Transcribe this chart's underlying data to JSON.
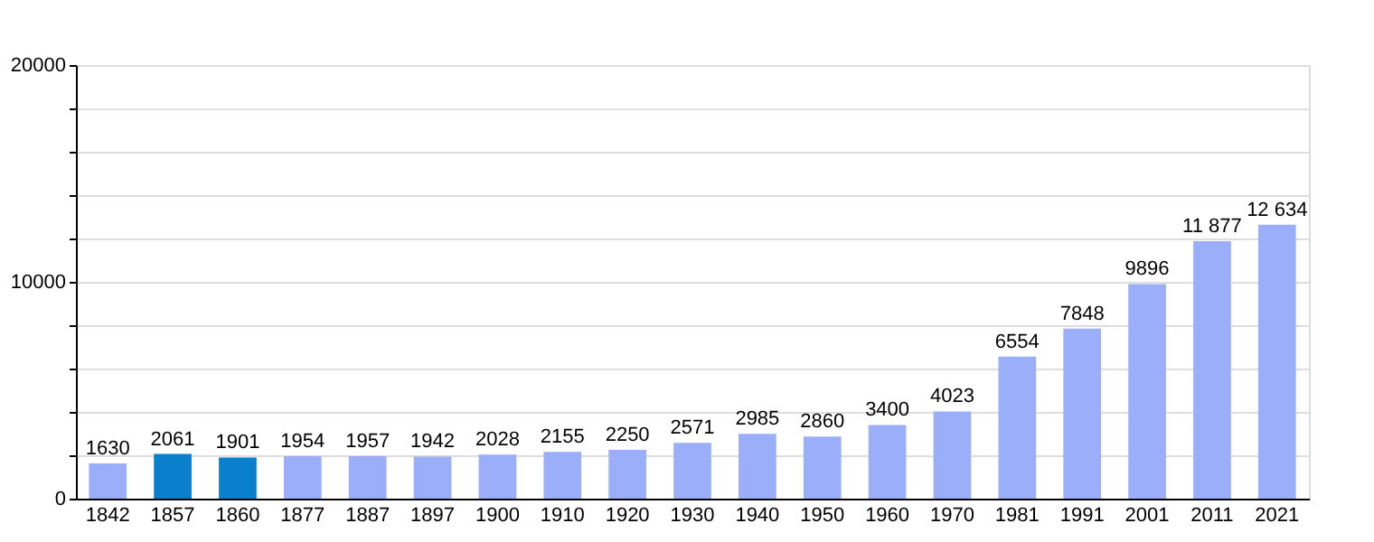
{
  "chart_data": {
    "type": "bar",
    "categories": [
      "1842",
      "1857",
      "1860",
      "1877",
      "1887",
      "1897",
      "1900",
      "1910",
      "1920",
      "1930",
      "1940",
      "1950",
      "1960",
      "1970",
      "1981",
      "1991",
      "2001",
      "2011",
      "2021"
    ],
    "values": [
      1630,
      2061,
      1901,
      1954,
      1957,
      1942,
      2028,
      2155,
      2250,
      2571,
      2985,
      2860,
      3400,
      4023,
      6554,
      7848,
      9896,
      11877,
      12634
    ],
    "value_labels": [
      "1630",
      "2061",
      "1901",
      "1954",
      "1957",
      "1942",
      "2028",
      "2155",
      "2250",
      "2571",
      "2985",
      "2860",
      "3400",
      "4023",
      "6554",
      "7848",
      "9896",
      "11 877",
      "12 634"
    ],
    "colors": [
      "#9aaefa",
      "#0a7fcc",
      "#0a7fcc",
      "#9aaefa",
      "#9aaefa",
      "#9aaefa",
      "#9aaefa",
      "#9aaefa",
      "#9aaefa",
      "#9aaefa",
      "#9aaefa",
      "#9aaefa",
      "#9aaefa",
      "#9aaefa",
      "#9aaefa",
      "#9aaefa",
      "#9aaefa",
      "#9aaefa",
      "#9aaefa"
    ],
    "ylim": [
      0,
      20000
    ],
    "yticks": [
      0,
      {
        "value": 2000,
        "label": null
      },
      {
        "value": 4000,
        "label": null
      },
      {
        "value": 6000,
        "label": null
      },
      {
        "value": 8000,
        "label": null
      },
      10000,
      {
        "value": 12000,
        "label": null
      },
      {
        "value": 14000,
        "label": null
      },
      {
        "value": 16000,
        "label": null
      },
      {
        "value": 18000,
        "label": null
      },
      20000
    ],
    "grid": "y"
  }
}
